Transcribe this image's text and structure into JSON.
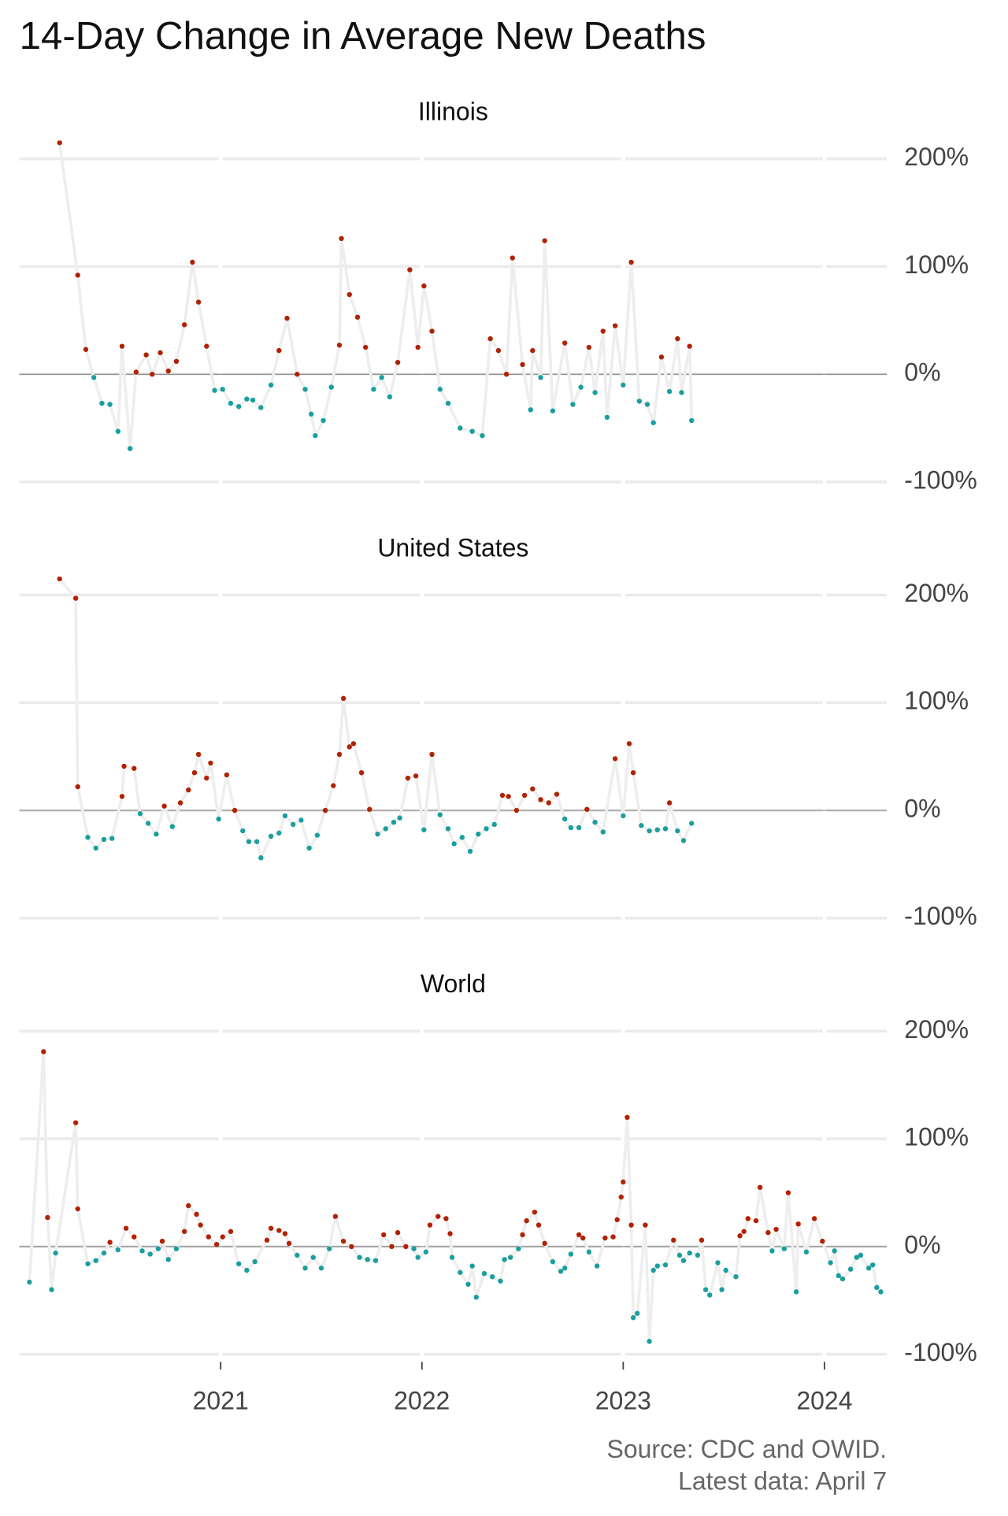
{
  "title": "14-Day Change in Average New Deaths",
  "source": "Source: CDC and OWID.",
  "note": "Latest data: April 7",
  "positive_color": "#b22200",
  "negative_color": "#1a9e9e",
  "line_color": "#eeeeee",
  "grid": true,
  "chart_data": [
    {
      "type": "scatter",
      "title": "Illinois",
      "xlim": [
        2020.0,
        2024.31
      ],
      "ylim": [
        -107,
        217
      ],
      "yticks": [
        {
          "value": -100,
          "label": "-100%"
        },
        {
          "value": 0,
          "label": "0%"
        },
        {
          "value": 100,
          "label": "100%"
        },
        {
          "value": 200,
          "label": "200%"
        }
      ],
      "x": [
        2020.2,
        2020.29,
        2020.33,
        2020.37,
        2020.41,
        2020.45,
        2020.49,
        2020.51,
        2020.55,
        2020.58,
        2020.63,
        2020.66,
        2020.7,
        2020.74,
        2020.78,
        2020.82,
        2020.86,
        2020.89,
        2020.93,
        2020.97,
        2021.01,
        2021.05,
        2021.09,
        2021.13,
        2021.16,
        2021.2,
        2021.25,
        2021.29,
        2021.33,
        2021.38,
        2021.42,
        2021.45,
        2021.47,
        2021.51,
        2021.55,
        2021.59,
        2021.6,
        2021.64,
        2021.68,
        2021.72,
        2021.76,
        2021.8,
        2021.84,
        2021.88,
        2021.94,
        2021.98,
        2022.01,
        2022.05,
        2022.09,
        2022.13,
        2022.19,
        2022.25,
        2022.3,
        2022.34,
        2022.38,
        2022.42,
        2022.45,
        2022.5,
        2022.54,
        2022.55,
        2022.59,
        2022.61,
        2022.65,
        2022.71,
        2022.75,
        2022.79,
        2022.83,
        2022.86,
        2022.9,
        2022.92,
        2022.96,
        2023.0,
        2023.04,
        2023.08,
        2023.12,
        2023.15,
        2023.19,
        2023.23,
        2023.27,
        2023.29,
        2023.33,
        2023.34
      ],
      "values": [
        215,
        92,
        23,
        -3,
        -27,
        -28,
        -53,
        26,
        -69,
        2,
        18,
        0,
        20,
        3,
        12,
        46,
        104,
        67,
        26,
        -15,
        -14,
        -27,
        -30,
        -23,
        -24,
        -31,
        -10,
        22,
        52,
        0,
        -14,
        -37,
        -57,
        -43,
        -12,
        27,
        126,
        74,
        53,
        25,
        -14,
        -3,
        -21,
        11,
        97,
        25,
        82,
        40,
        -14,
        -27,
        -50,
        -53,
        -57,
        33,
        22,
        0,
        108,
        9,
        -33,
        22,
        -3,
        124,
        -34,
        29,
        -28,
        -12,
        25,
        -17,
        40,
        -40,
        45,
        -10,
        104,
        -25,
        -28,
        -45,
        16,
        -16,
        33,
        -17,
        26,
        -43
      ]
    },
    {
      "type": "scatter",
      "title": "United States",
      "xlim": [
        2020.0,
        2024.31
      ],
      "ylim": [
        -107,
        217
      ],
      "yticks": [
        {
          "value": -100,
          "label": "-100%"
        },
        {
          "value": 0,
          "label": "0%"
        },
        {
          "value": 100,
          "label": "100%"
        },
        {
          "value": 200,
          "label": "200%"
        }
      ],
      "x": [
        2020.2,
        2020.28,
        2020.29,
        2020.34,
        2020.38,
        2020.42,
        2020.46,
        2020.51,
        2020.52,
        2020.57,
        2020.6,
        2020.64,
        2020.68,
        2020.72,
        2020.76,
        2020.8,
        2020.84,
        2020.87,
        2020.89,
        2020.93,
        2020.95,
        2020.99,
        2021.03,
        2021.07,
        2021.11,
        2021.14,
        2021.18,
        2021.2,
        2021.25,
        2021.29,
        2021.32,
        2021.36,
        2021.4,
        2021.44,
        2021.48,
        2021.52,
        2021.56,
        2021.59,
        2021.61,
        2021.64,
        2021.66,
        2021.7,
        2021.74,
        2021.78,
        2021.82,
        2021.86,
        2021.89,
        2021.93,
        2021.97,
        2022.01,
        2022.05,
        2022.09,
        2022.13,
        2022.16,
        2022.2,
        2022.24,
        2022.28,
        2022.32,
        2022.36,
        2022.4,
        2022.43,
        2022.47,
        2022.51,
        2022.55,
        2022.59,
        2022.63,
        2022.67,
        2022.71,
        2022.74,
        2022.78,
        2022.82,
        2022.86,
        2022.9,
        2022.96,
        2023.0,
        2023.03,
        2023.05,
        2023.09,
        2023.13,
        2023.17,
        2023.21,
        2023.23,
        2023.27,
        2023.3,
        2023.34
      ],
      "values": [
        215,
        197,
        22,
        -25,
        -35,
        -27,
        -26,
        13,
        41,
        39,
        -3,
        -12,
        -22,
        4,
        -15,
        7,
        19,
        35,
        52,
        30,
        44,
        -8,
        33,
        0,
        -19,
        -29,
        -29,
        -44,
        -24,
        -21,
        -5,
        -13,
        -9,
        -35,
        -23,
        0,
        23,
        52,
        104,
        59,
        62,
        35,
        1,
        -22,
        -17,
        -11,
        -7,
        30,
        32,
        -18,
        52,
        -4,
        -17,
        -31,
        -25,
        -38,
        -22,
        -17,
        -13,
        14,
        13,
        0,
        14,
        20,
        10,
        7,
        15,
        -8,
        -16,
        -16,
        1,
        -11,
        -20,
        48,
        -5,
        62,
        35,
        -14,
        -19,
        -18,
        -17,
        7,
        -19,
        -28,
        -12
      ]
    },
    {
      "type": "scatter",
      "title": "World",
      "xlim": [
        2020.0,
        2024.31
      ],
      "ylim": [
        -107,
        217
      ],
      "yticks": [
        {
          "value": -100,
          "label": "-100%"
        },
        {
          "value": 0,
          "label": "0%"
        },
        {
          "value": 100,
          "label": "100%"
        },
        {
          "value": 200,
          "label": "200%"
        }
      ],
      "xticks": [
        2021,
        2022,
        2023,
        2024
      ],
      "x": [
        2020.05,
        2020.12,
        2020.14,
        2020.16,
        2020.18,
        2020.28,
        2020.29,
        2020.34,
        2020.38,
        2020.42,
        2020.45,
        2020.49,
        2020.53,
        2020.57,
        2020.61,
        2020.65,
        2020.69,
        2020.71,
        2020.74,
        2020.78,
        2020.82,
        2020.84,
        2020.88,
        2020.9,
        2020.94,
        2020.98,
        2021.01,
        2021.05,
        2021.09,
        2021.13,
        2021.17,
        2021.23,
        2021.25,
        2021.29,
        2021.32,
        2021.34,
        2021.38,
        2021.42,
        2021.46,
        2021.5,
        2021.54,
        2021.57,
        2021.61,
        2021.65,
        2021.69,
        2021.73,
        2021.77,
        2021.81,
        2021.85,
        2021.88,
        2021.92,
        2021.96,
        2021.98,
        2022.02,
        2022.04,
        2022.08,
        2022.12,
        2022.14,
        2022.15,
        2022.19,
        2022.23,
        2022.25,
        2022.27,
        2022.31,
        2022.35,
        2022.39,
        2022.41,
        2022.44,
        2022.48,
        2022.5,
        2022.52,
        2022.56,
        2022.58,
        2022.61,
        2022.65,
        2022.69,
        2022.71,
        2022.74,
        2022.78,
        2022.8,
        2022.83,
        2022.87,
        2022.91,
        2022.95,
        2022.97,
        2022.99,
        2023.0,
        2023.02,
        2023.04,
        2023.05,
        2023.07,
        2023.11,
        2023.13,
        2023.15,
        2023.17,
        2023.21,
        2023.25,
        2023.28,
        2023.3,
        2023.33,
        2023.37,
        2023.39,
        2023.41,
        2023.43,
        2023.47,
        2023.49,
        2023.51,
        2023.56,
        2023.58,
        2023.6,
        2023.62,
        2023.66,
        2023.68,
        2023.72,
        2023.74,
        2023.76,
        2023.8,
        2023.82,
        2023.86,
        2023.87,
        2023.91,
        2023.95,
        2023.99,
        2024.03,
        2024.05,
        2024.07,
        2024.09,
        2024.13,
        2024.16,
        2024.18,
        2024.22,
        2024.24,
        2024.26,
        2024.28
      ],
      "values": [
        -33,
        181,
        27,
        -40,
        -6,
        115,
        35,
        -16,
        -13,
        -6,
        4,
        -3,
        17,
        9,
        -4,
        -7,
        -2,
        5,
        -12,
        -2,
        14,
        38,
        30,
        20,
        9,
        2,
        9,
        14,
        -16,
        -22,
        -14,
        6,
        17,
        15,
        12,
        3,
        -8,
        -20,
        -10,
        -20,
        -2,
        28,
        5,
        0,
        -10,
        -12,
        -13,
        11,
        0,
        13,
        0,
        -2,
        -10,
        -5,
        20,
        28,
        26,
        12,
        -10,
        -24,
        -35,
        -18,
        -47,
        -25,
        -28,
        -32,
        -12,
        -10,
        -2,
        11,
        24,
        32,
        20,
        3,
        -14,
        -23,
        -20,
        -7,
        11,
        8,
        -5,
        -18,
        8,
        9,
        25,
        46,
        60,
        120,
        20,
        -66,
        -62,
        20,
        -88,
        -22,
        -18,
        -17,
        6,
        -8,
        -13,
        -6,
        -8,
        6,
        -40,
        -45,
        -15,
        -40,
        -22,
        -28,
        10,
        14,
        26,
        24,
        55,
        13,
        -4,
        16,
        -2,
        50,
        -42,
        21,
        -5,
        26,
        5,
        -15,
        -4,
        -27,
        -30,
        -21,
        -10,
        -8,
        -20,
        -17,
        -38,
        -42
      ]
    }
  ]
}
